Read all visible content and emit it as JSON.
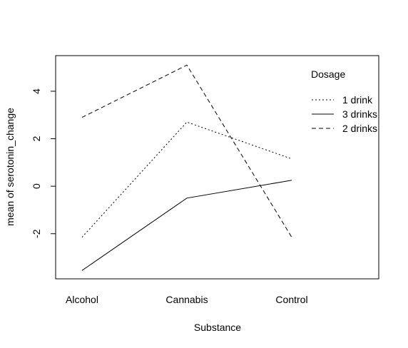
{
  "chart_data": {
    "type": "line",
    "title": "",
    "xlabel": "Substance",
    "ylabel": "mean of  serotonin_change",
    "categories": [
      "Alcohol",
      "Cannabis",
      "Control"
    ],
    "ylim": [
      -3.9,
      5.5
    ],
    "yticks": [
      -2,
      0,
      2,
      4
    ],
    "yticklabels": [
      "-2",
      "0",
      "2",
      "4"
    ],
    "legend": {
      "title": "Dosage",
      "placement": "top-right"
    },
    "series": [
      {
        "name": "1 drink",
        "linestyle": "dotted",
        "values": [
          -2.15,
          2.7,
          1.15
        ]
      },
      {
        "name": "3 drinks",
        "linestyle": "solid",
        "values": [
          -3.55,
          -0.5,
          0.25
        ]
      },
      {
        "name": "2 drinks",
        "linestyle": "dashed",
        "values": [
          2.9,
          5.1,
          -2.15
        ]
      }
    ],
    "grid": false,
    "colors": {
      "line": "#000000",
      "background": "#ffffff"
    }
  }
}
